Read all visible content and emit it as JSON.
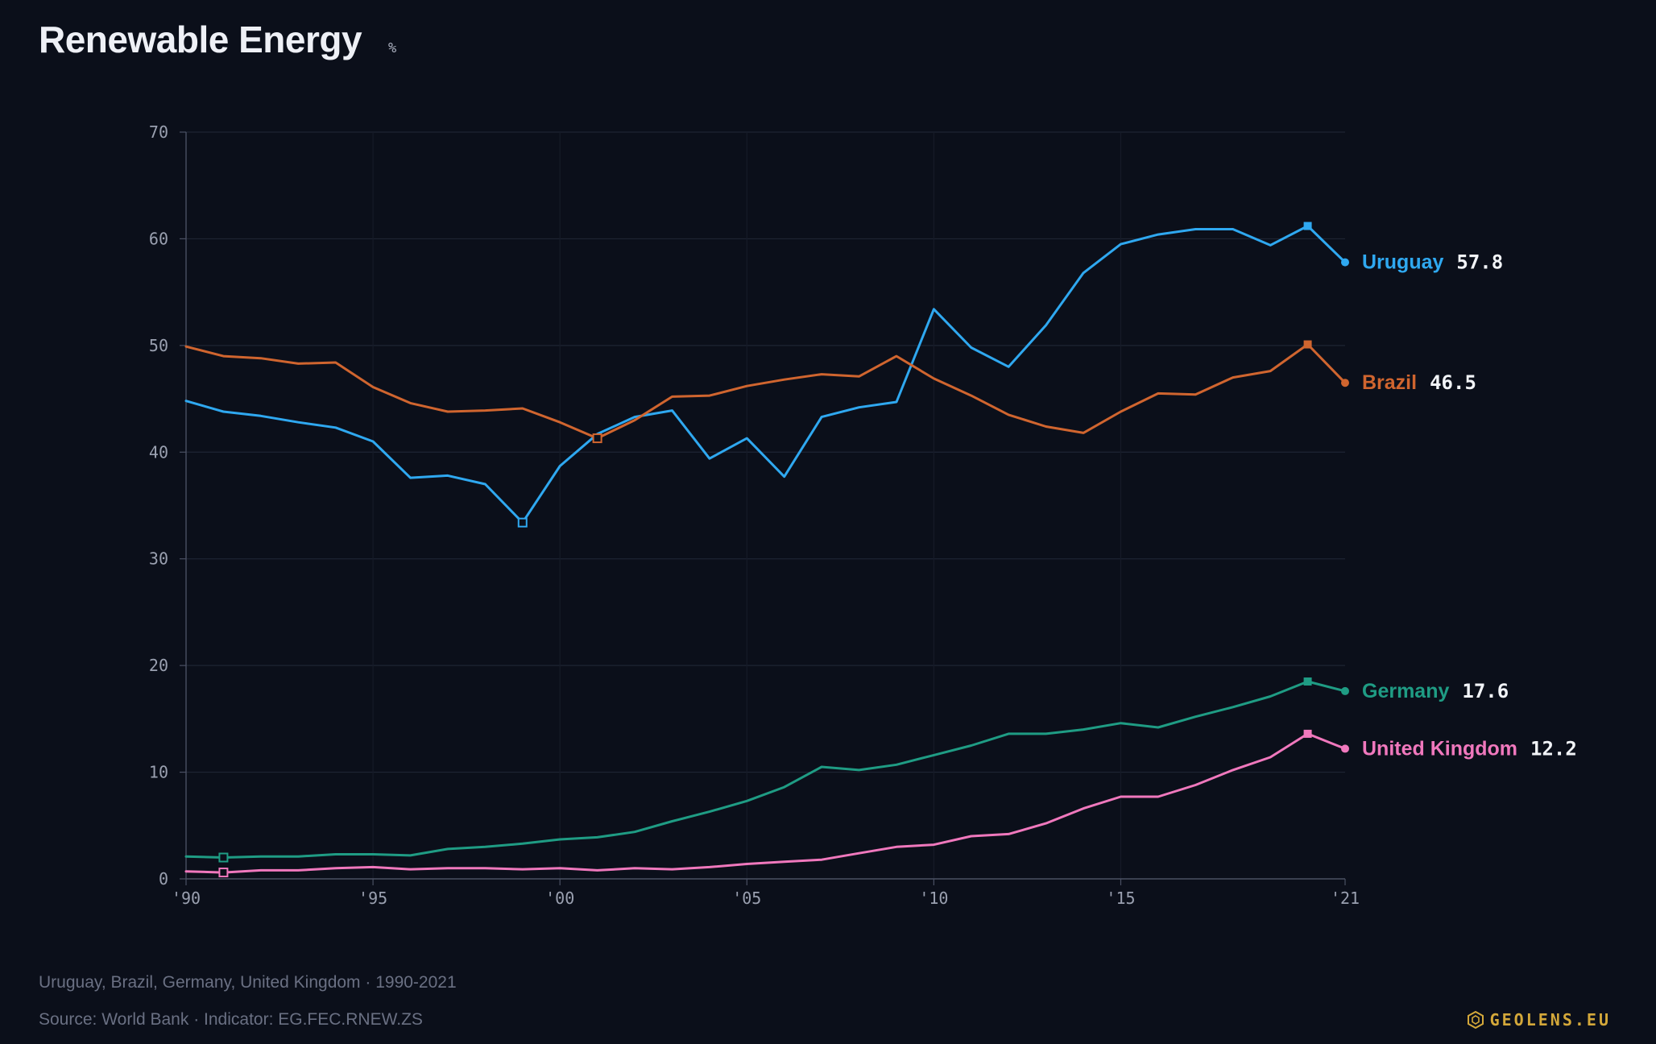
{
  "header": {
    "title": "Renewable Energy",
    "unit": "%"
  },
  "footer": {
    "subtitle": "Uruguay, Brazil, Germany, United Kingdom · 1990-2021",
    "source": "Source: World Bank · Indicator: EG.FEC.RNEW.ZS",
    "brand": "GEOLENS.EU",
    "brand_icon": "hexagon-logo-icon"
  },
  "chart_data": {
    "type": "line",
    "title": "Renewable Energy",
    "ylabel": "%",
    "xlabel": "",
    "ylim": [
      0,
      70
    ],
    "xlim": [
      1990,
      2021
    ],
    "yticks": [
      0,
      10,
      20,
      30,
      40,
      50,
      60,
      70
    ],
    "xticks": [
      {
        "year": 1990,
        "label": "'90"
      },
      {
        "year": 1995,
        "label": "'95"
      },
      {
        "year": 2000,
        "label": "'00"
      },
      {
        "year": 2005,
        "label": "'05"
      },
      {
        "year": 2010,
        "label": "'10"
      },
      {
        "year": 2015,
        "label": "'15"
      },
      {
        "year": 2021,
        "label": "'21"
      }
    ],
    "grid": true,
    "legend": "end-of-line labels",
    "x": [
      1990,
      1991,
      1992,
      1993,
      1994,
      1995,
      1996,
      1997,
      1998,
      1999,
      2000,
      2001,
      2002,
      2003,
      2004,
      2005,
      2006,
      2007,
      2008,
      2009,
      2010,
      2011,
      2012,
      2013,
      2014,
      2015,
      2016,
      2017,
      2018,
      2019,
      2020,
      2021
    ],
    "series": [
      {
        "name": "Uruguay",
        "color": "#2fa8f0",
        "values": [
          44.8,
          43.8,
          43.4,
          42.8,
          42.3,
          41.0,
          37.6,
          37.8,
          37.0,
          33.4,
          38.7,
          41.7,
          43.3,
          43.9,
          39.4,
          41.3,
          37.7,
          43.3,
          44.2,
          44.7,
          53.4,
          49.8,
          48.0,
          51.9,
          56.8,
          59.5,
          60.4,
          60.9,
          60.9,
          59.4,
          61.2,
          57.8
        ],
        "max_year": 2020,
        "min_year": 1999,
        "last_label": "57.8"
      },
      {
        "name": "Brazil",
        "color": "#d0652f",
        "values": [
          49.9,
          49.0,
          48.8,
          48.3,
          48.4,
          46.1,
          44.6,
          43.8,
          43.9,
          44.1,
          42.8,
          41.3,
          43.0,
          45.2,
          45.3,
          46.2,
          46.8,
          47.3,
          47.1,
          49.0,
          46.9,
          45.3,
          43.5,
          42.4,
          41.8,
          43.8,
          45.5,
          45.4,
          47.0,
          47.6,
          50.1,
          46.5
        ],
        "max_year": 2020,
        "min_year": 2001,
        "last_label": "46.5"
      },
      {
        "name": "Germany",
        "color": "#1f9c84",
        "values": [
          2.1,
          2.0,
          2.1,
          2.1,
          2.3,
          2.3,
          2.2,
          2.8,
          3.0,
          3.3,
          3.7,
          3.9,
          4.4,
          5.4,
          6.3,
          7.3,
          8.6,
          10.5,
          10.2,
          10.7,
          11.6,
          12.5,
          13.6,
          13.6,
          14.0,
          14.6,
          14.2,
          15.2,
          16.1,
          17.1,
          18.5,
          17.6
        ],
        "max_year": 2020,
        "min_year": 1991,
        "last_label": "17.6"
      },
      {
        "name": "United Kingdom",
        "color": "#f078bd",
        "values": [
          0.7,
          0.6,
          0.8,
          0.8,
          1.0,
          1.1,
          0.9,
          1.0,
          1.0,
          0.9,
          1.0,
          0.8,
          1.0,
          0.9,
          1.1,
          1.4,
          1.6,
          1.8,
          2.4,
          3.0,
          3.2,
          4.0,
          4.2,
          5.2,
          6.6,
          7.7,
          7.7,
          8.8,
          10.2,
          11.4,
          13.6,
          12.2
        ],
        "max_year": 2020,
        "min_year": 1991,
        "last_label": "12.2"
      }
    ]
  }
}
